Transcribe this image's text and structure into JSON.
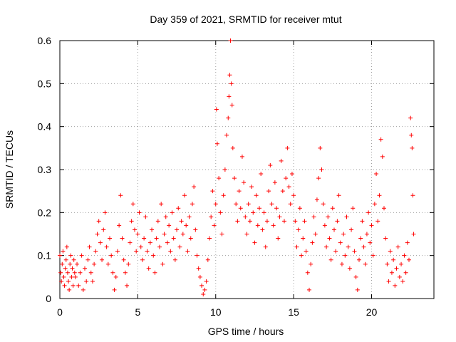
{
  "chart_data": {
    "type": "scatter",
    "title": "Day 359 of 2021, SRMTID for receiver mtut",
    "xlabel": "GPS time / hours",
    "ylabel": "SRMTID / TECUs",
    "xlim": [
      0,
      24
    ],
    "ylim": [
      0,
      0.6
    ],
    "xticks": [
      0,
      5,
      10,
      15,
      20
    ],
    "yticks": [
      0,
      0.1,
      0.2,
      0.3,
      0.4,
      0.5,
      0.6
    ],
    "xtick_labels": [
      "0",
      "5",
      "10",
      "15",
      "20"
    ],
    "ytick_labels": [
      "0",
      "0.1",
      "0.2",
      "0.3",
      "0.4",
      "0.5",
      "0.6"
    ],
    "grid": true,
    "marker": "plus",
    "color": "#ff0000",
    "series": [
      {
        "name": "SRMTID",
        "points": [
          [
            0.0,
            0.1
          ],
          [
            0.05,
            0.06
          ],
          [
            0.1,
            0.04
          ],
          [
            0.15,
            0.08
          ],
          [
            0.2,
            0.11
          ],
          [
            0.25,
            0.05
          ],
          [
            0.3,
            0.03
          ],
          [
            0.35,
            0.07
          ],
          [
            0.4,
            0.09
          ],
          [
            0.45,
            0.12
          ],
          [
            0.5,
            0.06
          ],
          [
            0.55,
            0.04
          ],
          [
            0.6,
            0.02
          ],
          [
            0.65,
            0.08
          ],
          [
            0.7,
            0.1
          ],
          [
            0.75,
            0.05
          ],
          [
            0.8,
            0.07
          ],
          [
            0.85,
            0.03
          ],
          [
            0.9,
            0.09
          ],
          [
            0.95,
            0.06
          ],
          [
            1.0,
            0.05
          ],
          [
            1.1,
            0.08
          ],
          [
            1.2,
            0.03
          ],
          [
            1.3,
            0.06
          ],
          [
            1.4,
            0.1
          ],
          [
            1.5,
            0.02
          ],
          [
            1.6,
            0.07
          ],
          [
            1.7,
            0.04
          ],
          [
            1.8,
            0.09
          ],
          [
            1.9,
            0.12
          ],
          [
            2.0,
            0.06
          ],
          [
            2.1,
            0.04
          ],
          [
            2.2,
            0.08
          ],
          [
            2.3,
            0.11
          ],
          [
            2.4,
            0.15
          ],
          [
            2.5,
            0.18
          ],
          [
            2.6,
            0.13
          ],
          [
            2.7,
            0.09
          ],
          [
            2.8,
            0.16
          ],
          [
            2.9,
            0.2
          ],
          [
            3.0,
            0.12
          ],
          [
            3.1,
            0.08
          ],
          [
            3.2,
            0.14
          ],
          [
            3.3,
            0.1
          ],
          [
            3.4,
            0.06
          ],
          [
            3.5,
            0.02
          ],
          [
            3.6,
            0.05
          ],
          [
            3.7,
            0.11
          ],
          [
            3.8,
            0.17
          ],
          [
            3.9,
            0.24
          ],
          [
            4.0,
            0.14
          ],
          [
            4.1,
            0.09
          ],
          [
            4.2,
            0.06
          ],
          [
            4.3,
            0.03
          ],
          [
            4.4,
            0.08
          ],
          [
            4.5,
            0.13
          ],
          [
            4.6,
            0.18
          ],
          [
            4.7,
            0.22
          ],
          [
            4.8,
            0.16
          ],
          [
            4.9,
            0.11
          ],
          [
            5.0,
            0.15
          ],
          [
            5.1,
            0.2
          ],
          [
            5.2,
            0.12
          ],
          [
            5.3,
            0.09
          ],
          [
            5.4,
            0.14
          ],
          [
            5.5,
            0.19
          ],
          [
            5.6,
            0.11
          ],
          [
            5.7,
            0.07
          ],
          [
            5.8,
            0.13
          ],
          [
            5.9,
            0.16
          ],
          [
            6.0,
            0.1
          ],
          [
            6.1,
            0.06
          ],
          [
            6.2,
            0.14
          ],
          [
            6.3,
            0.18
          ],
          [
            6.4,
            0.12
          ],
          [
            6.5,
            0.22
          ],
          [
            6.6,
            0.08
          ],
          [
            6.7,
            0.15
          ],
          [
            6.8,
            0.19
          ],
          [
            6.9,
            0.13
          ],
          [
            7.0,
            0.17
          ],
          [
            7.1,
            0.11
          ],
          [
            7.2,
            0.2
          ],
          [
            7.3,
            0.14
          ],
          [
            7.4,
            0.09
          ],
          [
            7.5,
            0.16
          ],
          [
            7.6,
            0.21
          ],
          [
            7.7,
            0.12
          ],
          [
            7.8,
            0.18
          ],
          [
            7.9,
            0.15
          ],
          [
            8.0,
            0.24
          ],
          [
            8.1,
            0.17
          ],
          [
            8.2,
            0.11
          ],
          [
            8.3,
            0.19
          ],
          [
            8.4,
            0.14
          ],
          [
            8.5,
            0.22
          ],
          [
            8.6,
            0.26
          ],
          [
            8.7,
            0.16
          ],
          [
            8.8,
            0.1
          ],
          [
            8.9,
            0.07
          ],
          [
            9.0,
            0.05
          ],
          [
            9.1,
            0.03
          ],
          [
            9.2,
            0.01
          ],
          [
            9.3,
            0.02
          ],
          [
            9.4,
            0.04
          ],
          [
            9.5,
            0.09
          ],
          [
            9.6,
            0.14
          ],
          [
            9.7,
            0.19
          ],
          [
            9.8,
            0.25
          ],
          [
            9.9,
            0.17
          ],
          [
            10.0,
            0.22
          ],
          [
            10.05,
            0.44
          ],
          [
            10.1,
            0.36
          ],
          [
            10.2,
            0.28
          ],
          [
            10.3,
            0.2
          ],
          [
            10.4,
            0.15
          ],
          [
            10.5,
            0.24
          ],
          [
            10.6,
            0.3
          ],
          [
            10.7,
            0.38
          ],
          [
            10.8,
            0.42
          ],
          [
            10.85,
            0.47
          ],
          [
            10.9,
            0.52
          ],
          [
            10.95,
            0.6
          ],
          [
            11.0,
            0.5
          ],
          [
            11.05,
            0.45
          ],
          [
            11.1,
            0.35
          ],
          [
            11.2,
            0.28
          ],
          [
            11.3,
            0.22
          ],
          [
            11.4,
            0.18
          ],
          [
            11.5,
            0.25
          ],
          [
            11.6,
            0.21
          ],
          [
            11.7,
            0.33
          ],
          [
            11.8,
            0.27
          ],
          [
            11.9,
            0.19
          ],
          [
            12.0,
            0.15
          ],
          [
            12.1,
            0.22
          ],
          [
            12.2,
            0.18
          ],
          [
            12.3,
            0.26
          ],
          [
            12.4,
            0.2
          ],
          [
            12.5,
            0.13
          ],
          [
            12.6,
            0.24
          ],
          [
            12.7,
            0.17
          ],
          [
            12.8,
            0.21
          ],
          [
            12.9,
            0.29
          ],
          [
            13.0,
            0.16
          ],
          [
            13.1,
            0.2
          ],
          [
            13.2,
            0.12
          ],
          [
            13.3,
            0.18
          ],
          [
            13.4,
            0.25
          ],
          [
            13.5,
            0.31
          ],
          [
            13.6,
            0.22
          ],
          [
            13.7,
            0.17
          ],
          [
            13.8,
            0.27
          ],
          [
            13.9,
            0.21
          ],
          [
            14.0,
            0.14
          ],
          [
            14.1,
            0.19
          ],
          [
            14.2,
            0.32
          ],
          [
            14.3,
            0.25
          ],
          [
            14.4,
            0.18
          ],
          [
            14.5,
            0.28
          ],
          [
            14.6,
            0.35
          ],
          [
            14.7,
            0.26
          ],
          [
            14.8,
            0.22
          ],
          [
            14.9,
            0.29
          ],
          [
            15.0,
            0.24
          ],
          [
            15.1,
            0.18
          ],
          [
            15.2,
            0.12
          ],
          [
            15.3,
            0.16
          ],
          [
            15.4,
            0.21
          ],
          [
            15.5,
            0.1
          ],
          [
            15.6,
            0.14
          ],
          [
            15.7,
            0.18
          ],
          [
            15.8,
            0.11
          ],
          [
            15.9,
            0.06
          ],
          [
            16.0,
            0.02
          ],
          [
            16.1,
            0.08
          ],
          [
            16.2,
            0.13
          ],
          [
            16.3,
            0.19
          ],
          [
            16.4,
            0.15
          ],
          [
            16.5,
            0.23
          ],
          [
            16.6,
            0.28
          ],
          [
            16.7,
            0.35
          ],
          [
            16.8,
            0.3
          ],
          [
            16.9,
            0.22
          ],
          [
            17.0,
            0.17
          ],
          [
            17.1,
            0.12
          ],
          [
            17.2,
            0.19
          ],
          [
            17.3,
            0.14
          ],
          [
            17.4,
            0.09
          ],
          [
            17.5,
            0.21
          ],
          [
            17.6,
            0.16
          ],
          [
            17.7,
            0.11
          ],
          [
            17.8,
            0.18
          ],
          [
            17.9,
            0.24
          ],
          [
            18.0,
            0.13
          ],
          [
            18.1,
            0.08
          ],
          [
            18.2,
            0.15
          ],
          [
            18.3,
            0.1
          ],
          [
            18.4,
            0.19
          ],
          [
            18.5,
            0.12
          ],
          [
            18.6,
            0.07
          ],
          [
            18.7,
            0.16
          ],
          [
            18.8,
            0.21
          ],
          [
            18.9,
            0.11
          ],
          [
            19.0,
            0.05
          ],
          [
            19.1,
            0.02
          ],
          [
            19.2,
            0.09
          ],
          [
            19.3,
            0.14
          ],
          [
            19.4,
            0.18
          ],
          [
            19.5,
            0.12
          ],
          [
            19.6,
            0.08
          ],
          [
            19.7,
            0.15
          ],
          [
            19.8,
            0.2
          ],
          [
            19.9,
            0.13
          ],
          [
            20.0,
            0.17
          ],
          [
            20.1,
            0.1
          ],
          [
            20.2,
            0.22
          ],
          [
            20.3,
            0.29
          ],
          [
            20.4,
            0.18
          ],
          [
            20.5,
            0.24
          ],
          [
            20.6,
            0.37
          ],
          [
            20.7,
            0.33
          ],
          [
            20.8,
            0.21
          ],
          [
            20.9,
            0.14
          ],
          [
            21.0,
            0.08
          ],
          [
            21.1,
            0.04
          ],
          [
            21.2,
            0.11
          ],
          [
            21.3,
            0.06
          ],
          [
            21.4,
            0.09
          ],
          [
            21.5,
            0.03
          ],
          [
            21.6,
            0.07
          ],
          [
            21.7,
            0.12
          ],
          [
            21.8,
            0.05
          ],
          [
            21.9,
            0.08
          ],
          [
            22.0,
            0.04
          ],
          [
            22.1,
            0.1
          ],
          [
            22.2,
            0.06
          ],
          [
            22.3,
            0.13
          ],
          [
            22.4,
            0.09
          ],
          [
            22.5,
            0.42
          ],
          [
            22.55,
            0.38
          ],
          [
            22.6,
            0.35
          ],
          [
            22.65,
            0.24
          ],
          [
            22.7,
            0.15
          ]
        ]
      }
    ]
  }
}
